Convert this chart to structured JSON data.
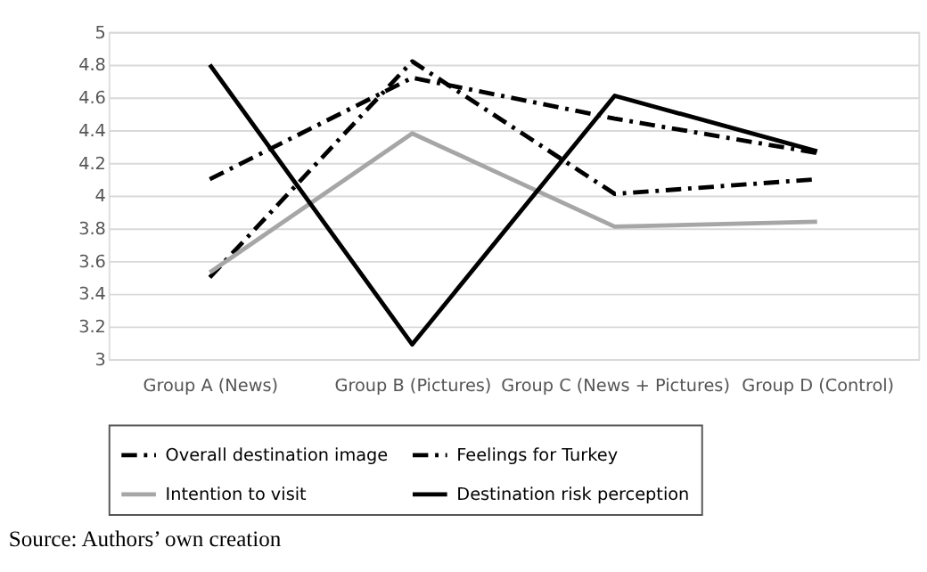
{
  "chart_data": {
    "type": "line",
    "categories": [
      "Group A (News)",
      "Group B (Pictures)",
      "Group C (News + Pictures)",
      "Group D (Control)"
    ],
    "series": [
      {
        "name": "Overall destination image",
        "color": "#000000",
        "line_style": "dashed",
        "values": [
          4.1,
          4.72,
          4.47,
          4.26
        ]
      },
      {
        "name": "Feelings for Turkey",
        "color": "#000000",
        "line_style": "dashed",
        "values": [
          3.5,
          4.82,
          4.01,
          4.1
        ]
      },
      {
        "name": "Intention to visit",
        "color": "#a6a6a6",
        "line_style": "solid",
        "values": [
          3.53,
          4.38,
          3.81,
          3.84
        ]
      },
      {
        "name": "Destination risk perception",
        "color": "#000000",
        "line_style": "solid",
        "values": [
          4.8,
          3.09,
          4.61,
          4.27
        ]
      }
    ],
    "ylim": [
      3,
      5
    ],
    "yticks": [
      3,
      3.2,
      3.4,
      3.6,
      3.8,
      4,
      4.2,
      4.4,
      4.6,
      4.8,
      5
    ],
    "grid": "y",
    "legend": "bottom",
    "marker": "none",
    "annotations": [
      "Source: Authors’ own creation"
    ]
  }
}
